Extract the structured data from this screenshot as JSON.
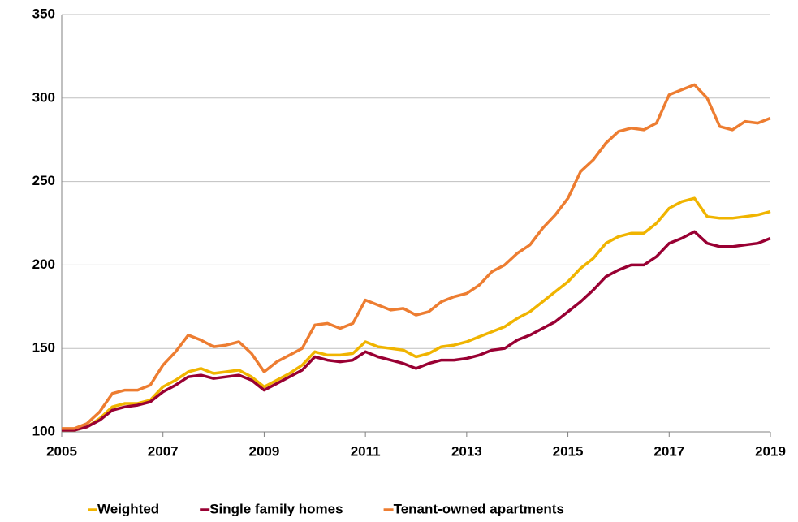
{
  "chart_data": {
    "type": "line",
    "x": [
      2005,
      2005.25,
      2005.5,
      2005.75,
      2006,
      2006.25,
      2006.5,
      2006.75,
      2007,
      2007.25,
      2007.5,
      2007.75,
      2008,
      2008.25,
      2008.5,
      2008.75,
      2009,
      2009.25,
      2009.5,
      2009.75,
      2010,
      2010.25,
      2010.5,
      2010.75,
      2011,
      2011.25,
      2011.5,
      2011.75,
      2012,
      2012.25,
      2012.5,
      2012.75,
      2013,
      2013.25,
      2013.5,
      2013.75,
      2014,
      2014.25,
      2014.5,
      2014.75,
      2015,
      2015.25,
      2015.5,
      2015.75,
      2016,
      2016.25,
      2016.5,
      2016.75,
      2017,
      2017.25,
      2017.5,
      2017.75,
      2018,
      2018.25,
      2018.5,
      2018.75,
      2019
    ],
    "series": [
      {
        "name": "Weighted",
        "color": "#f0b400",
        "values": [
          101,
          101,
          103,
          108,
          115,
          117,
          117,
          119,
          127,
          131,
          136,
          138,
          135,
          136,
          137,
          133,
          127,
          131,
          135,
          140,
          148,
          146,
          146,
          147,
          154,
          151,
          150,
          149,
          145,
          147,
          151,
          152,
          154,
          157,
          160,
          163,
          168,
          172,
          178,
          184,
          190,
          198,
          204,
          213,
          217,
          219,
          219,
          225,
          234,
          238,
          240,
          229,
          228,
          228,
          229,
          230,
          232
        ]
      },
      {
        "name": "Single family homes",
        "color": "#990033",
        "values": [
          101,
          101,
          103,
          107,
          113,
          115,
          116,
          118,
          124,
          128,
          133,
          134,
          132,
          133,
          134,
          131,
          125,
          129,
          133,
          137,
          145,
          143,
          142,
          143,
          148,
          145,
          143,
          141,
          138,
          141,
          143,
          143,
          144,
          146,
          149,
          150,
          155,
          158,
          162,
          166,
          172,
          178,
          185,
          193,
          197,
          200,
          200,
          205,
          213,
          216,
          220,
          213,
          211,
          211,
          212,
          213,
          216
        ]
      },
      {
        "name": "Tenant-owned apartments",
        "color": "#ed7d31",
        "values": [
          102,
          102,
          105,
          112,
          123,
          125,
          125,
          128,
          140,
          148,
          158,
          155,
          151,
          152,
          154,
          147,
          136,
          142,
          146,
          150,
          164,
          165,
          162,
          165,
          179,
          176,
          173,
          174,
          170,
          172,
          178,
          181,
          183,
          188,
          196,
          200,
          207,
          212,
          222,
          230,
          240,
          256,
          263,
          273,
          280,
          282,
          281,
          285,
          302,
          305,
          308,
          300,
          283,
          281,
          286,
          285,
          288
        ]
      }
    ],
    "xlim": [
      2005,
      2019
    ],
    "xticks": [
      2005,
      2007,
      2009,
      2011,
      2013,
      2015,
      2017,
      2019
    ],
    "ylim": [
      100,
      350
    ],
    "yticks": [
      100,
      150,
      200,
      250,
      300,
      350
    ],
    "grid": true,
    "legend": "bottom"
  }
}
